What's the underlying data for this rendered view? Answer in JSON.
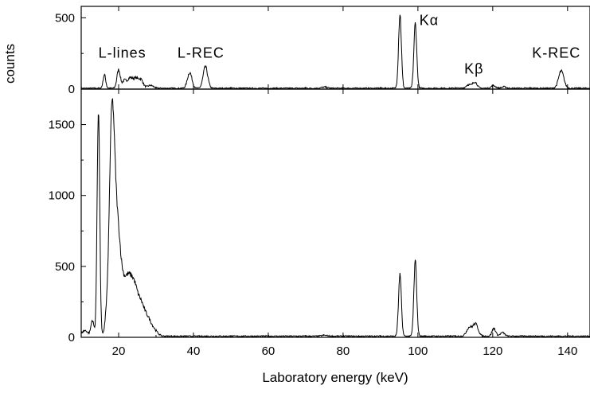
{
  "chart_data": {
    "type": "line",
    "xlabel": "Laboratory energy (keV)",
    "ylabel": "counts",
    "xlim": [
      10,
      146
    ],
    "x_ticks": [
      20,
      40,
      60,
      80,
      100,
      120,
      140
    ],
    "panels": [
      {
        "name": "top",
        "ylim": [
          0,
          580
        ],
        "y_ticks": [
          0,
          500
        ],
        "annotations": [
          {
            "text": "L-lines",
            "x": 21,
            "y": 220
          },
          {
            "text": "L-REC",
            "x": 42,
            "y": 220
          },
          {
            "text": "Kα",
            "x": 103,
            "y": 450
          },
          {
            "text": "Kβ",
            "x": 115,
            "y": 110
          },
          {
            "text": "K-REC",
            "x": 137,
            "y": 220
          }
        ],
        "peaks": [
          {
            "x": 16.2,
            "y": 95,
            "w": 0.35
          },
          {
            "x": 20.0,
            "y": 130,
            "w": 0.45
          },
          {
            "x": 21.5,
            "y": 50,
            "w": 0.5
          },
          {
            "x": 23.0,
            "y": 70,
            "w": 0.7
          },
          {
            "x": 24.6,
            "y": 65,
            "w": 0.7
          },
          {
            "x": 26.0,
            "y": 55,
            "w": 0.6
          },
          {
            "x": 28.5,
            "y": 20,
            "w": 0.8
          },
          {
            "x": 39.0,
            "y": 110,
            "w": 0.6
          },
          {
            "x": 43.2,
            "y": 150,
            "w": 0.6
          },
          {
            "x": 75.0,
            "y": 8,
            "w": 0.8
          },
          {
            "x": 95.2,
            "y": 520,
            "w": 0.38
          },
          {
            "x": 99.3,
            "y": 455,
            "w": 0.38
          },
          {
            "x": 113.5,
            "y": 25,
            "w": 0.6
          },
          {
            "x": 115.2,
            "y": 45,
            "w": 0.6
          },
          {
            "x": 120.2,
            "y": 18,
            "w": 0.6
          },
          {
            "x": 123.0,
            "y": 10,
            "w": 0.6
          },
          {
            "x": 138.3,
            "y": 120,
            "w": 0.7
          }
        ],
        "baseline": 6
      },
      {
        "name": "bottom",
        "ylim": [
          0,
          1750
        ],
        "y_ticks": [
          0,
          500,
          1000,
          1500
        ],
        "annotations": [],
        "peaks": [
          {
            "x": 11.0,
            "y": 40,
            "w": 0.8
          },
          {
            "x": 13.0,
            "y": 110,
            "w": 0.4
          },
          {
            "x": 14.6,
            "y": 1600,
            "w": 0.35
          },
          {
            "x": 16.6,
            "y": 80,
            "w": 0.4
          },
          {
            "x": 18.2,
            "y": 1500,
            "w": 0.7
          },
          {
            "x": 19.6,
            "y": 650,
            "w": 0.8
          },
          {
            "x": 21.0,
            "y": 280,
            "w": 0.9
          },
          {
            "x": 22.6,
            "y": 320,
            "w": 0.9
          },
          {
            "x": 24.2,
            "y": 300,
            "w": 0.9
          },
          {
            "x": 26.0,
            "y": 200,
            "w": 0.9
          },
          {
            "x": 27.8,
            "y": 110,
            "w": 0.9
          },
          {
            "x": 29.5,
            "y": 40,
            "w": 0.9
          },
          {
            "x": 75.0,
            "y": 6,
            "w": 0.8
          },
          {
            "x": 95.2,
            "y": 430,
            "w": 0.38
          },
          {
            "x": 99.3,
            "y": 530,
            "w": 0.38
          },
          {
            "x": 113.7,
            "y": 60,
            "w": 0.7
          },
          {
            "x": 115.4,
            "y": 85,
            "w": 0.7
          },
          {
            "x": 120.3,
            "y": 55,
            "w": 0.5
          },
          {
            "x": 122.6,
            "y": 25,
            "w": 0.6
          }
        ],
        "baseline": 8
      }
    ]
  }
}
